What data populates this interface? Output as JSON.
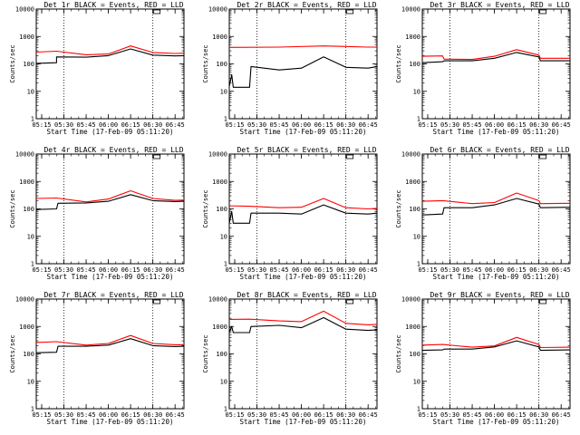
{
  "colors": {
    "background": "#ffffff",
    "axes": "#000000",
    "events": "#000000",
    "lld": "#ff0000"
  },
  "layout_note_free": true,
  "chart_data": [
    {
      "type": "line",
      "title": "Det 1r BLACK = Events, RED = LLD",
      "xlabel": "Start Time (17-Feb-09 05:11:20)",
      "ylabel": "Counts/sec",
      "x_ticks": [
        "05:15",
        "05:30",
        "05:45",
        "06:00",
        "06:15",
        "06:30",
        "06:45"
      ],
      "y_ticks": [
        "1",
        "10",
        "100",
        "1000",
        "10000"
      ],
      "ylim": [
        1,
        10000
      ],
      "yscale": "log",
      "xlim": [
        "05:11:20",
        "06:51:00"
      ],
      "vlines": [
        "05:30",
        "06:30"
      ],
      "series": [
        {
          "color": "#000000",
          "x": [
            "05:11:20",
            "05:25",
            "05:25",
            "05:45",
            "06:00",
            "06:15",
            "06:30",
            "06:45",
            "06:51"
          ],
          "y": [
            105,
            110,
            180,
            175,
            200,
            350,
            210,
            195,
            200
          ]
        },
        {
          "color": "#ff0000",
          "x": [
            "05:11:20",
            "05:25",
            "05:45",
            "06:00",
            "06:15",
            "06:30",
            "06:45",
            "06:51"
          ],
          "y": [
            270,
            290,
            215,
            230,
            450,
            260,
            240,
            245
          ]
        }
      ]
    },
    {
      "type": "line",
      "title": "Det 2r BLACK = Events, RED = LLD",
      "xlabel": "Start Time (17-Feb-09 05:11:20)",
      "ylabel": "Counts/sec",
      "x_ticks": [
        "05:15",
        "05:30",
        "05:45",
        "06:00",
        "06:15",
        "06:30",
        "06:45"
      ],
      "y_ticks": [
        "1",
        "10",
        "100",
        "1000",
        "10000"
      ],
      "ylim": [
        1,
        10000
      ],
      "yscale": "log",
      "xlim": [
        "05:11:20",
        "06:51:00"
      ],
      "vlines": [
        "05:30",
        "06:30"
      ],
      "series": [
        {
          "color": "#000000",
          "x": [
            "05:11:20",
            "05:13",
            "05:14",
            "05:25",
            "05:26",
            "05:45",
            "06:00",
            "06:15",
            "06:30",
            "06:45",
            "06:51"
          ],
          "y": [
            15,
            40,
            14,
            14,
            80,
            60,
            70,
            180,
            75,
            70,
            80
          ]
        },
        {
          "color": "#ff0000",
          "x": [
            "05:11:20",
            "05:45",
            "06:15",
            "06:45",
            "06:51"
          ],
          "y": [
            400,
            410,
            450,
            410,
            410
          ]
        }
      ]
    },
    {
      "type": "line",
      "title": "Det 3r BLACK = Events, RED = LLD",
      "xlabel": "Start Time (17-Feb-09 05:11:20)",
      "ylabel": "Counts/sec",
      "x_ticks": [
        "05:15",
        "05:30",
        "05:45",
        "06:00",
        "06:15",
        "06:30",
        "06:45"
      ],
      "y_ticks": [
        "1",
        "10",
        "100",
        "1000",
        "10000"
      ],
      "ylim": [
        1,
        10000
      ],
      "yscale": "log",
      "xlim": [
        "05:11:20",
        "06:51:00"
      ],
      "vlines": [
        "05:30",
        "06:30"
      ],
      "series": [
        {
          "color": "#000000",
          "x": [
            "05:11:20",
            "05:25",
            "05:26",
            "05:45",
            "06:00",
            "06:15",
            "06:30",
            "06:31",
            "06:51"
          ],
          "y": [
            110,
            120,
            130,
            130,
            160,
            260,
            180,
            130,
            130
          ]
        },
        {
          "color": "#ff0000",
          "x": [
            "05:11:20",
            "05:25",
            "05:26",
            "05:45",
            "06:00",
            "06:15",
            "06:30",
            "06:31",
            "06:51"
          ],
          "y": [
            190,
            195,
            150,
            145,
            190,
            330,
            210,
            160,
            160
          ]
        }
      ]
    },
    {
      "type": "line",
      "title": "Det 4r BLACK = Events, RED = LLD",
      "xlabel": "Start Time (17-Feb-09 05:11:20)",
      "ylabel": "Counts/sec",
      "x_ticks": [
        "05:15",
        "05:30",
        "05:45",
        "06:00",
        "06:15",
        "06:30",
        "06:45"
      ],
      "y_ticks": [
        "1",
        "10",
        "100",
        "1000",
        "10000"
      ],
      "ylim": [
        1,
        10000
      ],
      "yscale": "log",
      "xlim": [
        "05:11:20",
        "06:51:00"
      ],
      "vlines": [
        "05:30",
        "06:30"
      ],
      "series": [
        {
          "color": "#000000",
          "x": [
            "05:11:20",
            "05:25",
            "05:26",
            "05:45",
            "06:00",
            "06:15",
            "06:30",
            "06:45",
            "06:51"
          ],
          "y": [
            95,
            100,
            160,
            165,
            190,
            330,
            200,
            185,
            190
          ]
        },
        {
          "color": "#ff0000",
          "x": [
            "05:11:20",
            "05:25",
            "05:45",
            "06:00",
            "06:15",
            "06:30",
            "06:45",
            "06:51"
          ],
          "y": [
            240,
            250,
            180,
            230,
            460,
            240,
            205,
            210
          ]
        }
      ]
    },
    {
      "type": "line",
      "title": "Det 5r BLACK = Events, RED = LLD",
      "xlabel": "Start Time (17-Feb-09 05:11:20)",
      "ylabel": "Counts/sec",
      "x_ticks": [
        "05:15",
        "05:30",
        "05:45",
        "06:00",
        "06:15",
        "06:30",
        "06:45"
      ],
      "y_ticks": [
        "1",
        "10",
        "100",
        "1000",
        "10000"
      ],
      "ylim": [
        1,
        10000
      ],
      "yscale": "log",
      "xlim": [
        "05:11:20",
        "06:51:00"
      ],
      "vlines": [
        "05:30",
        "06:30"
      ],
      "series": [
        {
          "color": "#000000",
          "x": [
            "05:11:20",
            "05:13",
            "05:14",
            "05:25",
            "05:26",
            "05:45",
            "06:00",
            "06:15",
            "06:30",
            "06:45",
            "06:51"
          ],
          "y": [
            30,
            80,
            30,
            30,
            70,
            70,
            65,
            140,
            70,
            65,
            70
          ]
        },
        {
          "color": "#ff0000",
          "x": [
            "05:11:20",
            "05:25",
            "05:45",
            "06:00",
            "06:15",
            "06:30",
            "06:45",
            "06:51"
          ],
          "y": [
            130,
            125,
            110,
            115,
            240,
            110,
            100,
            105
          ]
        }
      ]
    },
    {
      "type": "line",
      "title": "Det 6r BLACK = Events, RED = LLD",
      "xlabel": "Start Time (17-Feb-09 05:11:20)",
      "ylabel": "Counts/sec",
      "x_ticks": [
        "05:15",
        "05:30",
        "05:45",
        "06:00",
        "06:15",
        "06:30",
        "06:45"
      ],
      "y_ticks": [
        "1",
        "10",
        "100",
        "1000",
        "10000"
      ],
      "ylim": [
        1,
        10000
      ],
      "yscale": "log",
      "xlim": [
        "05:11:20",
        "06:51:00"
      ],
      "vlines": [
        "05:30",
        "06:30"
      ],
      "series": [
        {
          "color": "#000000",
          "x": [
            "05:11:20",
            "05:25",
            "05:26",
            "05:45",
            "06:00",
            "06:15",
            "06:30",
            "06:31",
            "06:51"
          ],
          "y": [
            60,
            65,
            110,
            110,
            140,
            240,
            150,
            110,
            115
          ]
        },
        {
          "color": "#ff0000",
          "x": [
            "05:11:20",
            "05:25",
            "05:45",
            "06:00",
            "06:15",
            "06:30",
            "06:31",
            "06:51"
          ],
          "y": [
            190,
            200,
            155,
            170,
            380,
            200,
            155,
            160
          ]
        }
      ]
    },
    {
      "type": "line",
      "title": "Det 7r BLACK = Events, RED = LLD",
      "xlabel": "Start Time (17-Feb-09 05:11:20)",
      "ylabel": "Counts/sec",
      "x_ticks": [
        "05:15",
        "05:30",
        "05:45",
        "06:00",
        "06:15",
        "06:30",
        "06:45"
      ],
      "y_ticks": [
        "1",
        "10",
        "100",
        "1000",
        "10000"
      ],
      "ylim": [
        1,
        10000
      ],
      "yscale": "log",
      "xlim": [
        "05:11:20",
        "06:51:00"
      ],
      "vlines": [
        "05:30",
        "06:30"
      ],
      "series": [
        {
          "color": "#000000",
          "x": [
            "05:11:20",
            "05:25",
            "05:26",
            "05:45",
            "06:00",
            "06:15",
            "06:30",
            "06:45",
            "06:51"
          ],
          "y": [
            110,
            115,
            190,
            190,
            210,
            360,
            200,
            185,
            190
          ]
        },
        {
          "color": "#ff0000",
          "x": [
            "05:11:20",
            "05:25",
            "05:45",
            "06:00",
            "06:15",
            "06:30",
            "06:45",
            "06:51"
          ],
          "y": [
            260,
            280,
            210,
            240,
            470,
            240,
            215,
            215
          ]
        }
      ]
    },
    {
      "type": "line",
      "title": "Det 8r BLACK = Events, RED = LLD",
      "xlabel": "Start Time (17-Feb-09 05:11:20)",
      "ylabel": "Counts/sec",
      "x_ticks": [
        "05:15",
        "05:30",
        "05:45",
        "06:00",
        "06:15",
        "06:30",
        "06:45"
      ],
      "y_ticks": [
        "1",
        "10",
        "100",
        "1000",
        "10000"
      ],
      "ylim": [
        1,
        10000
      ],
      "yscale": "log",
      "xlim": [
        "05:11:20",
        "06:51:00"
      ],
      "vlines": [
        "05:30",
        "06:30"
      ],
      "series": [
        {
          "color": "#000000",
          "x": [
            "05:11:20",
            "05:13",
            "05:14",
            "05:25",
            "05:26",
            "05:45",
            "06:00",
            "06:15",
            "06:30",
            "06:45",
            "06:51"
          ],
          "y": [
            600,
            1000,
            600,
            600,
            1000,
            1100,
            900,
            2100,
            800,
            720,
            760
          ]
        },
        {
          "color": "#ff0000",
          "x": [
            "05:11:20",
            "05:25",
            "05:45",
            "06:00",
            "06:15",
            "06:30",
            "06:45",
            "06:51"
          ],
          "y": [
            1800,
            1850,
            1600,
            1500,
            3600,
            1300,
            1150,
            1200
          ]
        }
      ]
    },
    {
      "type": "line",
      "title": "Det 9r BLACK = Events, RED = LLD",
      "xlabel": "Start Time (17-Feb-09 05:11:20)",
      "ylabel": "Counts/sec",
      "x_ticks": [
        "05:15",
        "05:30",
        "05:45",
        "06:00",
        "06:15",
        "06:30",
        "06:45"
      ],
      "y_ticks": [
        "1",
        "10",
        "100",
        "1000",
        "10000"
      ],
      "ylim": [
        1,
        10000
      ],
      "yscale": "log",
      "xlim": [
        "05:11:20",
        "06:51:00"
      ],
      "vlines": [
        "05:30",
        "06:30"
      ],
      "series": [
        {
          "color": "#000000",
          "x": [
            "05:11:20",
            "05:25",
            "05:26",
            "05:45",
            "06:00",
            "06:15",
            "06:30",
            "06:31",
            "06:51"
          ],
          "y": [
            135,
            140,
            150,
            150,
            180,
            300,
            180,
            135,
            140
          ]
        },
        {
          "color": "#ff0000",
          "x": [
            "05:11:20",
            "05:25",
            "05:45",
            "06:00",
            "06:15",
            "06:30",
            "06:31",
            "06:51"
          ],
          "y": [
            210,
            220,
            175,
            195,
            400,
            220,
            170,
            175
          ]
        }
      ]
    }
  ]
}
